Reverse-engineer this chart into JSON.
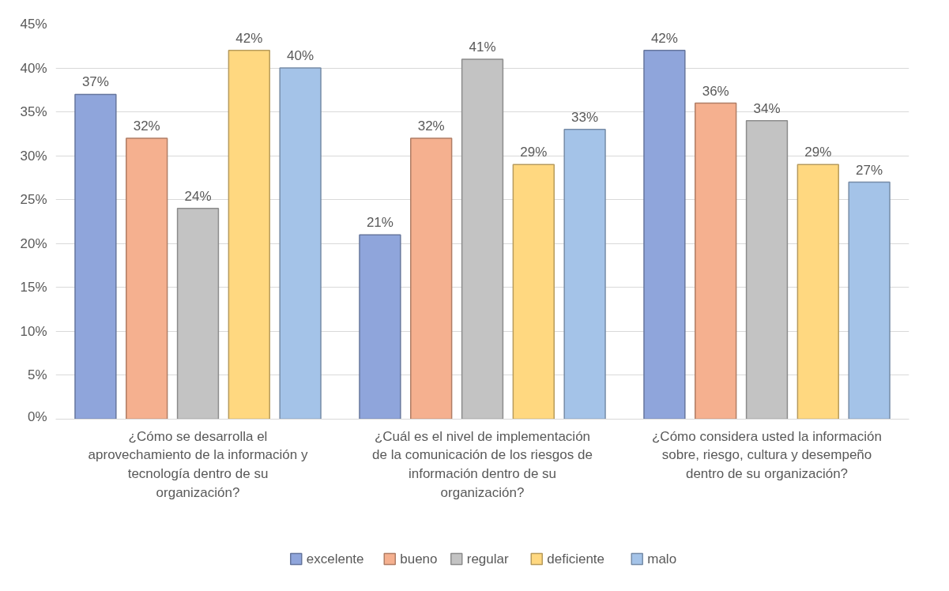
{
  "chart_data": {
    "type": "bar",
    "categories": [
      "¿Cómo se desarrolla el aprovechamiento de la información y tecnología dentro de su organización?",
      "¿Cuál es el nivel de implementación de la comunicación de los riesgos de información dentro de su organización?",
      "¿Cómo considera usted la información sobre, riesgo, cultura y desempeño dentro de su organización?"
    ],
    "series": [
      {
        "name": "excelente",
        "color": "#8fa5db",
        "values": [
          37,
          21,
          42
        ],
        "value_labels": [
          "37%",
          "21%",
          "42%"
        ]
      },
      {
        "name": "bueno",
        "color": "#f5b08f",
        "values": [
          32,
          32,
          36
        ],
        "value_labels": [
          "32%",
          "32%",
          "36%"
        ]
      },
      {
        "name": "regular",
        "color": "#c3c3c3",
        "values": [
          24,
          41,
          34
        ],
        "value_labels": [
          "24%",
          "41%",
          "34%"
        ]
      },
      {
        "name": "deficiente",
        "color": "#ffd880",
        "values": [
          42,
          29,
          29
        ],
        "value_labels": [
          "42%",
          "29%",
          "29%"
        ]
      },
      {
        "name": "malo",
        "color": "#a4c3e8",
        "values": [
          40,
          33,
          27
        ],
        "value_labels": [
          "40%",
          "33%",
          "27%"
        ]
      }
    ],
    "ylim": [
      0,
      45
    ],
    "yticks": [
      {
        "value": 0,
        "label": "0%"
      },
      {
        "value": 5,
        "label": "5%"
      },
      {
        "value": 10,
        "label": "10%"
      },
      {
        "value": 15,
        "label": "15%"
      },
      {
        "value": 20,
        "label": "20%"
      },
      {
        "value": 25,
        "label": "25%"
      },
      {
        "value": 30,
        "label": "30%"
      },
      {
        "value": 35,
        "label": "35%"
      },
      {
        "value": 40,
        "label": "40%"
      },
      {
        "value": 45,
        "label": "45%"
      }
    ],
    "grid": "y",
    "legend": "bottom"
  }
}
